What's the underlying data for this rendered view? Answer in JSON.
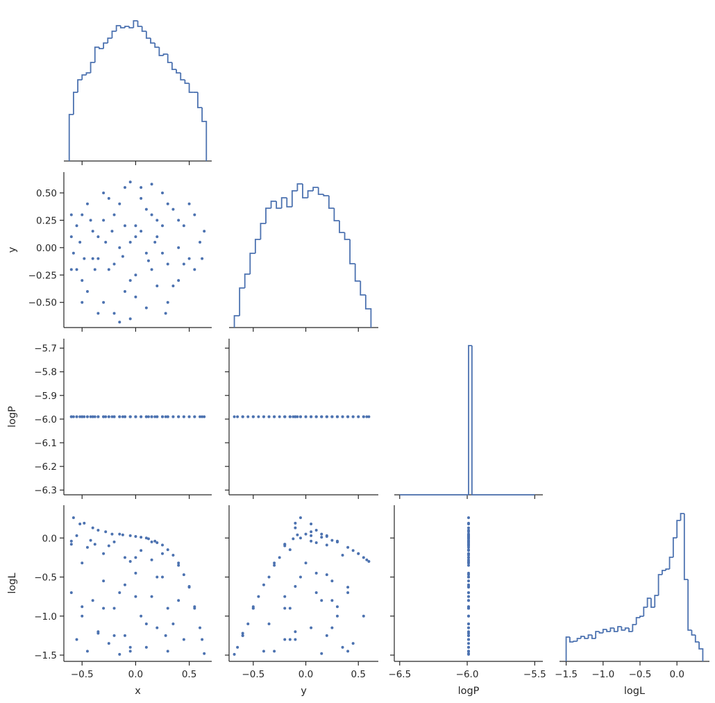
{
  "chart_data": {
    "type": "pairplot",
    "color": "#4c72b0",
    "variables": [
      {
        "label": "x",
        "xlim": [
          -0.67,
          0.71
        ],
        "xticks": [
          {
            "value": -0.5,
            "label": "−0.5"
          },
          {
            "value": 0,
            "label": "0.0"
          },
          0.5
        ],
        "values": [
          -0.58,
          -0.55,
          -0.5,
          -0.45,
          -0.4,
          -0.35,
          -0.3,
          -0.3,
          -0.25,
          -0.2,
          -0.2,
          -0.15,
          -0.1,
          -0.1,
          -0.05,
          0,
          0,
          0.05,
          0.1,
          0.1,
          0.15,
          0.2,
          0.2,
          0.25,
          0.3,
          0.3,
          0.35,
          0.4,
          0.4,
          0.45,
          0.5,
          0.55,
          0.55,
          0.6,
          0.62,
          0.64,
          -0.6,
          -0.55,
          -0.5,
          -0.45,
          -0.4,
          -0.35,
          -0.3,
          -0.25,
          -0.2,
          -0.15,
          -0.1,
          -0.05,
          0,
          0.05,
          0.1,
          0.15,
          0.2,
          0.25,
          0.3,
          0.35,
          0.4,
          0.45,
          -0.6,
          -0.52,
          -0.48,
          -0.42,
          -0.38,
          -0.28,
          -0.22,
          -0.12,
          -0.05,
          0.05,
          0.12,
          0.18,
          0.25,
          -0.6,
          -0.5,
          0,
          0.15,
          -0.05,
          0.5,
          -0.35,
          0.28,
          -0.15
        ],
        "hist": {
          "bins": [
            -0.62,
            -0.58,
            -0.54,
            -0.5,
            -0.46,
            -0.42,
            -0.38,
            -0.34,
            -0.3,
            -0.26,
            -0.22,
            -0.18,
            -0.14,
            -0.1,
            -0.06,
            -0.02,
            0.02,
            0.06,
            0.1,
            0.14,
            0.18,
            0.22,
            0.26,
            0.3,
            0.34,
            0.38,
            0.42,
            0.46,
            0.5,
            0.54,
            0.58,
            0.62,
            0.66
          ],
          "counts": [
            67,
            99,
            117,
            124,
            127,
            142,
            164,
            162,
            170,
            177,
            187,
            195,
            192,
            194,
            192,
            202,
            194,
            187,
            177,
            170,
            164,
            152,
            154,
            142,
            132,
            127,
            117,
            112,
            99,
            99,
            77,
            57
          ],
          "ylim": [
            0,
            222
          ]
        }
      },
      {
        "label": "y",
        "xlim": [
          -0.73,
          0.69
        ],
        "ylim": [
          -0.73,
          0.69
        ],
        "xticks": [
          {
            "value": -0.5,
            "label": "−0.5"
          },
          {
            "value": 0,
            "label": "0.0"
          },
          0.5
        ],
        "yticks": [
          {
            "value": 0.5,
            "label": "0.50"
          },
          0.25,
          {
            "value": 0,
            "label": "0.00"
          },
          {
            "value": -0.25,
            "label": "−0.25"
          },
          {
            "value": -0.5,
            "label": "−0.50"
          }
        ],
        "values": [
          -0.05,
          0.2,
          -0.3,
          0.4,
          -0.1,
          0.1,
          -0.5,
          0.5,
          -0.2,
          0.3,
          -0.6,
          0,
          -0.4,
          0.55,
          -0.65,
          0.2,
          -0.25,
          0.45,
          -0.55,
          -0.05,
          0.3,
          -0.35,
          0.1,
          0.5,
          -0.15,
          -0.5,
          0.35,
          0,
          -0.3,
          0.2,
          -0.1,
          0.3,
          -0.2,
          0.05,
          -0.1,
          0.15,
          0.1,
          -0.2,
          0.3,
          -0.4,
          0.15,
          -0.1,
          0.25,
          0.45,
          -0.15,
          0.4,
          0.2,
          -0.3,
          0.1,
          0.55,
          0.35,
          -0.2,
          0.25,
          -0.05,
          0.4,
          -0.35,
          0.25,
          -0.15,
          -0.2,
          0.05,
          -0.1,
          0.25,
          -0.2,
          0.05,
          0.15,
          -0.08,
          0.05,
          0.15,
          -0.12,
          0.05,
          0.2,
          0.3,
          -0.5,
          -0.45,
          0.58,
          0.6,
          0.4,
          -0.6,
          -0.6,
          -0.68
        ],
        "hist": {
          "bins": [
            -0.68,
            -0.63,
            -0.58,
            -0.53,
            -0.48,
            -0.43,
            -0.38,
            -0.33,
            -0.28,
            -0.23,
            -0.18,
            -0.13,
            -0.08,
            -0.03,
            0.02,
            0.07,
            0.12,
            0.17,
            0.22,
            0.27,
            0.32,
            0.37,
            0.42,
            0.47,
            0.52,
            0.57,
            0.62
          ],
          "counts": [
            17,
            57,
            77,
            107,
            127,
            150,
            172,
            182,
            172,
            187,
            174,
            197,
            207,
            187,
            197,
            202,
            192,
            190,
            172,
            154,
            137,
            127,
            92,
            67,
            47,
            27
          ],
          "ylim": [
            0,
            224
          ]
        }
      },
      {
        "label": "logP",
        "xlim": [
          -6.54,
          -5.44
        ],
        "ylim": [
          -6.32,
          -5.66
        ],
        "xticks": [
          {
            "value": -6.5,
            "label": "−6.5"
          },
          {
            "value": -6,
            "label": "−6.0"
          },
          {
            "value": -5.5,
            "label": "−5.5"
          }
        ],
        "yticks": [
          {
            "value": -5.7,
            "label": "−5.7"
          },
          {
            "value": -5.8,
            "label": "−5.8"
          },
          {
            "value": -5.9,
            "label": "−5.9"
          },
          {
            "value": -6,
            "label": "−6.0"
          },
          {
            "value": -6.1,
            "label": "−6.1"
          },
          {
            "value": -6.2,
            "label": "−6.2"
          },
          {
            "value": -6.3,
            "label": "−6.3"
          }
        ],
        "values": [
          -5.99,
          -5.99,
          -5.99,
          -5.99,
          -5.99,
          -5.99,
          -5.99,
          -5.99,
          -5.99,
          -5.99,
          -5.99,
          -5.99,
          -5.99,
          -5.99,
          -5.99,
          -5.99,
          -5.99,
          -5.99,
          -5.99,
          -5.99,
          -5.99,
          -5.99,
          -5.99,
          -5.99,
          -5.99,
          -5.99,
          -5.99,
          -5.99,
          -5.99,
          -5.99,
          -5.99,
          -5.99,
          -5.99,
          -5.99,
          -5.99,
          -5.99,
          -5.99,
          -5.99,
          -5.99,
          -5.99,
          -5.99,
          -5.99,
          -5.99,
          -5.99,
          -5.99,
          -5.99,
          -5.99,
          -5.99,
          -5.99,
          -5.99,
          -5.99,
          -5.99,
          -5.99,
          -5.99,
          -5.99,
          -5.99,
          -5.99,
          -5.99,
          -5.99,
          -5.99,
          -5.99,
          -5.99,
          -5.99,
          -5.99,
          -5.99,
          -5.99,
          -5.99,
          -5.99,
          -5.99,
          -5.99,
          -5.99,
          -5.99,
          -5.99,
          -5.99,
          -5.99,
          -5.99,
          -5.99,
          -5.99,
          -5.99,
          -5.99
        ],
        "hist": {
          "bins": [
            -6.5,
            -5.99,
            -5.965,
            -5.5
          ],
          "counts": [
            0,
            215,
            0
          ],
          "ylim": [
            0,
            225
          ]
        }
      },
      {
        "label": "logL",
        "xlim": [
          -1.59,
          0.44
        ],
        "ylim": [
          -1.58,
          0.42
        ],
        "xticks": [
          {
            "value": -1.5,
            "label": "−1.5"
          },
          {
            "value": -1,
            "label": "−1.0"
          },
          {
            "value": -0.5,
            "label": "−0.5"
          },
          {
            "value": 0,
            "label": "0.0"
          }
        ],
        "yticks": [
          {
            "value": 0,
            "label": "0.0"
          },
          {
            "value": -0.5,
            "label": "−0.5"
          },
          {
            "value": -1,
            "label": "−1.0"
          },
          {
            "value": -1.5,
            "label": "−1.5"
          }
        ],
        "values": [
          0.26,
          0.03,
          -0.32,
          -0.12,
          0.13,
          0.1,
          -0.9,
          -0.2,
          -0.1,
          -0.05,
          -1.25,
          0.05,
          -0.6,
          -0.25,
          -1.4,
          0.02,
          -0.25,
          -0.16,
          -1.1,
          0,
          -0.05,
          -0.5,
          -0.06,
          -0.2,
          -0.15,
          -0.9,
          -0.22,
          -0.32,
          -0.35,
          -0.47,
          -0.62,
          -0.88,
          -0.9,
          -1.15,
          -1.3,
          -1.48,
          -0.7,
          -1.3,
          -1,
          -1.45,
          -0.8,
          -1.2,
          -0.55,
          -1.35,
          -0.9,
          -0.7,
          -1.25,
          -1.45,
          -0.45,
          -1,
          -1.4,
          -0.75,
          -1.15,
          -0.5,
          -1.45,
          -1.1,
          -0.8,
          -1.3,
          -0.08,
          0.18,
          0.19,
          -0.03,
          -0.08,
          0.08,
          0.05,
          0.04,
          0.03,
          0.01,
          -0.01,
          -0.04,
          -0.09,
          -0.04,
          -0.88,
          -0.75,
          -0.28,
          -0.3,
          -0.63,
          -1.22,
          -1.25,
          -1.49
        ],
        "hist": {
          "bins": [
            -1.5,
            -1.45,
            -1.4,
            -1.35,
            -1.3,
            -1.25,
            -1.2,
            -1.15,
            -1.1,
            -1.05,
            -1,
            -0.95,
            -0.9,
            -0.85,
            -0.8,
            -0.75,
            -0.7,
            -0.65,
            -0.6,
            -0.55,
            -0.5,
            -0.45,
            -0.4,
            -0.35,
            -0.3,
            -0.25,
            -0.2,
            -0.15,
            -0.1,
            -0.05,
            0,
            0.05,
            0.1,
            0.15,
            0.2,
            0.25,
            0.3,
            0.35
          ],
          "counts": [
            35,
            28,
            29,
            33,
            36,
            33,
            38,
            33,
            43,
            41,
            46,
            43,
            48,
            43,
            50,
            45,
            48,
            43,
            53,
            63,
            65,
            78,
            91,
            78,
            95,
            125,
            131,
            133,
            150,
            178,
            203,
            213,
            118,
            45,
            38,
            28,
            18
          ],
          "ylim": [
            0,
            225
          ]
        }
      }
    ]
  }
}
